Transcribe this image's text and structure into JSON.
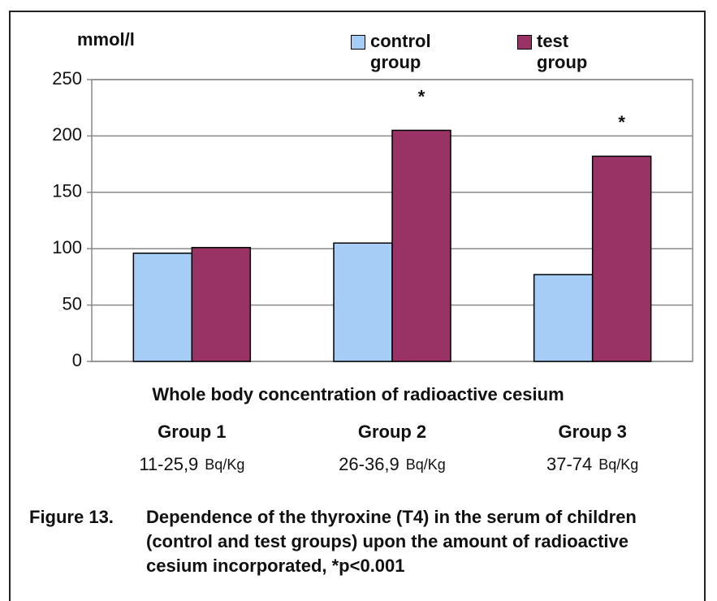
{
  "chart_data": {
    "type": "bar",
    "ylabel": "mmol/l",
    "xlabel": "Whole body concentration of radioactive cesium",
    "categories": [
      "Group 1",
      "Group 2",
      "Group 3"
    ],
    "category_ranges": [
      "11-25,9",
      "26-36,9",
      "37-74"
    ],
    "range_unit": "Bq/Kg",
    "series": [
      {
        "name": "control group",
        "color": "#a6cdf5",
        "values": [
          96,
          105,
          77
        ],
        "value_annotations": [
          null,
          null,
          null
        ]
      },
      {
        "name": "test group",
        "color": "#993366",
        "values": [
          101,
          205,
          182
        ],
        "value_annotations": [
          null,
          "*",
          "*"
        ]
      }
    ],
    "ylim": [
      0,
      250
    ],
    "yticks": [
      0,
      50,
      100,
      150,
      200,
      250
    ],
    "grid": true,
    "legend": "top",
    "figure_label": "Figure 13.",
    "caption": "Dependence of the thyroxine (T4) in the serum of children (control and test groups) upon the amount of radioactive cesium incorporated, *p<0.001"
  }
}
